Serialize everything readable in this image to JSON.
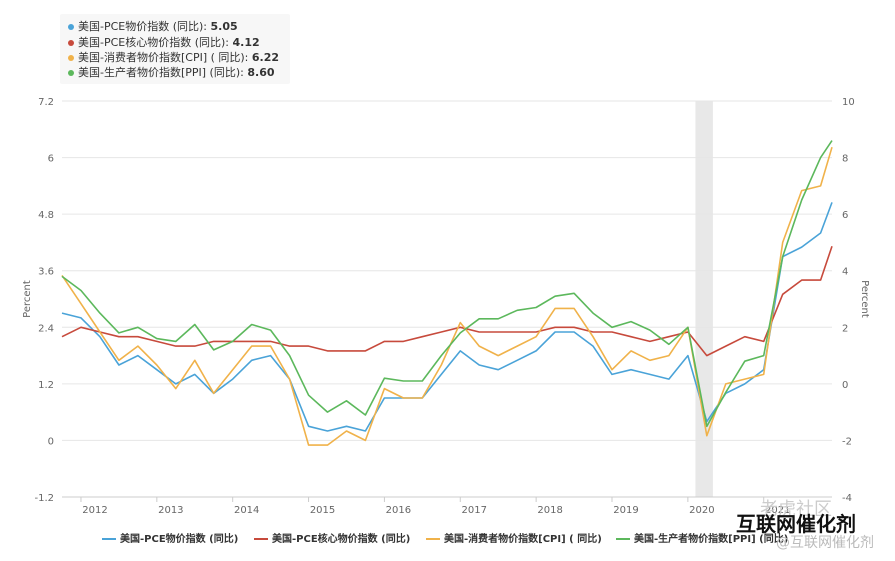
{
  "tooltip": {
    "rows": [
      {
        "label": "美国-PCE物价指数 (同比):",
        "value": "5.05",
        "color": "#4aa3d8"
      },
      {
        "label": "美国-PCE核心物价指数 (同比):",
        "value": "4.12",
        "color": "#c74a3c"
      },
      {
        "label": "美国-消费者物价指数[CPI] ( 同比):",
        "value": "6.22",
        "color": "#f0b24a"
      },
      {
        "label": "美国-生产者物价指数[PPI] (同比):",
        "value": "8.60",
        "color": "#5cb85c"
      }
    ]
  },
  "watermark": {
    "line1": "老虎社区",
    "line2": "互联网催化剂",
    "line3": "@互联网催化剂"
  },
  "chart_data": {
    "type": "line",
    "x_ticks": [
      "2012",
      "2013",
      "2014",
      "2015",
      "2016",
      "2017",
      "2018",
      "2019",
      "2020",
      "2021"
    ],
    "x_range": [
      2011.75,
      2021.9
    ],
    "left_axis": {
      "label": "Percent",
      "ticks": [
        "-1.2",
        "0",
        "1.2",
        "2.4",
        "3.6",
        "4.8",
        "6",
        "7.2"
      ],
      "range": [
        -1.2,
        7.2
      ]
    },
    "right_axis": {
      "label": "Percent",
      "ticks": [
        "-4",
        "-2",
        "0",
        "2",
        "4",
        "6",
        "8",
        "10"
      ],
      "range": [
        -4,
        10
      ]
    },
    "shaded_band": {
      "x_from": 2020.1,
      "x_to": 2020.33
    },
    "series": [
      {
        "name": "美国-PCE物价指数 (同比)",
        "color": "#4aa3d8",
        "axis": "left",
        "x": [
          2011.75,
          2012.0,
          2012.25,
          2012.5,
          2012.75,
          2013.0,
          2013.25,
          2013.5,
          2013.75,
          2014.0,
          2014.25,
          2014.5,
          2014.75,
          2015.0,
          2015.25,
          2015.5,
          2015.75,
          2016.0,
          2016.25,
          2016.5,
          2016.75,
          2017.0,
          2017.25,
          2017.5,
          2017.75,
          2018.0,
          2018.25,
          2018.5,
          2018.75,
          2019.0,
          2019.25,
          2019.5,
          2019.75,
          2020.0,
          2020.25,
          2020.5,
          2020.75,
          2021.0,
          2021.25,
          2021.5,
          2021.75,
          2021.9
        ],
        "y": [
          2.7,
          2.6,
          2.2,
          1.6,
          1.8,
          1.5,
          1.2,
          1.4,
          1.0,
          1.3,
          1.7,
          1.8,
          1.3,
          0.3,
          0.2,
          0.3,
          0.2,
          0.9,
          0.9,
          0.9,
          1.4,
          1.9,
          1.6,
          1.5,
          1.7,
          1.9,
          2.3,
          2.3,
          2.0,
          1.4,
          1.5,
          1.4,
          1.3,
          1.8,
          0.4,
          1.0,
          1.2,
          1.5,
          3.9,
          4.1,
          4.4,
          5.05
        ]
      },
      {
        "name": "美国-PCE核心物价指数 (同比)",
        "color": "#c74a3c",
        "axis": "left",
        "x": [
          2011.75,
          2012.0,
          2012.25,
          2012.5,
          2012.75,
          2013.0,
          2013.25,
          2013.5,
          2013.75,
          2014.0,
          2014.25,
          2014.5,
          2014.75,
          2015.0,
          2015.25,
          2015.5,
          2015.75,
          2016.0,
          2016.25,
          2016.5,
          2016.75,
          2017.0,
          2017.25,
          2017.5,
          2017.75,
          2018.0,
          2018.25,
          2018.5,
          2018.75,
          2019.0,
          2019.25,
          2019.5,
          2019.75,
          2020.0,
          2020.25,
          2020.5,
          2020.75,
          2021.0,
          2021.25,
          2021.5,
          2021.75,
          2021.9
        ],
        "y": [
          2.2,
          2.4,
          2.3,
          2.2,
          2.2,
          2.1,
          2.0,
          2.0,
          2.1,
          2.1,
          2.1,
          2.1,
          2.0,
          2.0,
          1.9,
          1.9,
          1.9,
          2.1,
          2.1,
          2.2,
          2.3,
          2.4,
          2.3,
          2.3,
          2.3,
          2.3,
          2.4,
          2.4,
          2.3,
          2.3,
          2.2,
          2.1,
          2.2,
          2.3,
          1.8,
          2.0,
          2.2,
          2.1,
          3.1,
          3.4,
          3.4,
          4.12
        ]
      },
      {
        "name": "美国-消费者物价指数[CPI] ( 同比)",
        "color": "#f0b24a",
        "axis": "left",
        "x": [
          2011.75,
          2012.0,
          2012.25,
          2012.5,
          2012.75,
          2013.0,
          2013.25,
          2013.5,
          2013.75,
          2014.0,
          2014.25,
          2014.5,
          2014.75,
          2015.0,
          2015.25,
          2015.5,
          2015.75,
          2016.0,
          2016.25,
          2016.5,
          2016.75,
          2017.0,
          2017.25,
          2017.5,
          2017.75,
          2018.0,
          2018.25,
          2018.5,
          2018.75,
          2019.0,
          2019.25,
          2019.5,
          2019.75,
          2020.0,
          2020.25,
          2020.5,
          2020.75,
          2021.0,
          2021.25,
          2021.5,
          2021.75,
          2021.9
        ],
        "y": [
          3.5,
          2.9,
          2.3,
          1.7,
          2.0,
          1.6,
          1.1,
          1.7,
          1.0,
          1.5,
          2.0,
          2.0,
          1.3,
          -0.1,
          -0.1,
          0.2,
          0.0,
          1.1,
          0.9,
          0.9,
          1.6,
          2.5,
          2.0,
          1.8,
          2.0,
          2.2,
          2.8,
          2.8,
          2.2,
          1.5,
          1.9,
          1.7,
          1.8,
          2.4,
          0.1,
          1.2,
          1.3,
          1.4,
          4.2,
          5.3,
          5.4,
          6.22
        ]
      },
      {
        "name": "美国-生产者物价指数[PPI] (同比)",
        "color": "#5cb85c",
        "axis": "right",
        "x": [
          2011.75,
          2012.0,
          2012.25,
          2012.5,
          2012.75,
          2013.0,
          2013.25,
          2013.5,
          2013.75,
          2014.0,
          2014.25,
          2014.5,
          2014.75,
          2015.0,
          2015.25,
          2015.5,
          2015.75,
          2016.0,
          2016.25,
          2016.5,
          2016.75,
          2017.0,
          2017.25,
          2017.5,
          2017.75,
          2018.0,
          2018.25,
          2018.5,
          2018.75,
          2019.0,
          2019.25,
          2019.5,
          2019.75,
          2020.0,
          2020.25,
          2020.5,
          2020.75,
          2021.0,
          2021.25,
          2021.5,
          2021.75,
          2021.9
        ],
        "y": [
          3.8,
          3.3,
          2.5,
          1.8,
          2.0,
          1.6,
          1.5,
          2.1,
          1.2,
          1.5,
          2.1,
          1.9,
          1.0,
          -0.4,
          -1.0,
          -0.6,
          -1.1,
          0.2,
          0.1,
          0.1,
          1.0,
          1.8,
          2.3,
          2.3,
          2.6,
          2.7,
          3.1,
          3.2,
          2.5,
          2.0,
          2.2,
          1.9,
          1.4,
          2.0,
          -1.5,
          -0.3,
          0.8,
          1.0,
          4.5,
          6.5,
          8.0,
          8.6
        ]
      }
    ]
  }
}
